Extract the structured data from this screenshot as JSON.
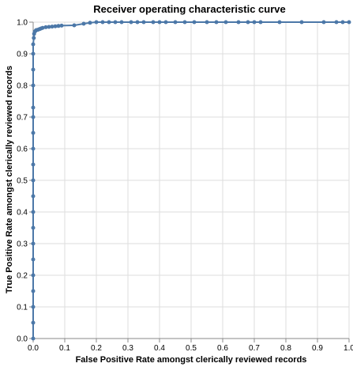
{
  "chart_data": {
    "type": "line",
    "title": "Receiver operating characteristic curve",
    "xlabel": "False Positive Rate amongst clerically reviewed records",
    "ylabel": "True Positive Rate amongst clerically reviewed records",
    "xlim": [
      0,
      1
    ],
    "ylim": [
      0,
      1
    ],
    "x_ticks": [
      0,
      0.1,
      0.2,
      0.3,
      0.4,
      0.5,
      0.6,
      0.7,
      0.8,
      0.9,
      1
    ],
    "x_tick_labels": [
      "0.0",
      "0.1",
      "0.2",
      "0.3",
      "0.4",
      "0.5",
      "0.6",
      "0.7",
      "0.8",
      "0.9",
      "1.0"
    ],
    "y_ticks": [
      0,
      0.1,
      0.2,
      0.3,
      0.4,
      0.5,
      0.6,
      0.7,
      0.8,
      0.9,
      1
    ],
    "y_tick_labels": [
      "0.0",
      "0.1",
      "0.2",
      "0.3",
      "0.4",
      "0.5",
      "0.6",
      "0.7",
      "0.8",
      "0.9",
      "1.0"
    ],
    "grid": true,
    "color": "#4c78a8",
    "series": [
      {
        "points": [
          [
            0,
            0
          ],
          [
            0,
            0.05
          ],
          [
            0,
            0.1
          ],
          [
            0,
            0.15
          ],
          [
            0,
            0.2
          ],
          [
            0,
            0.25
          ],
          [
            0,
            0.3
          ],
          [
            0,
            0.35
          ],
          [
            0,
            0.4
          ],
          [
            0,
            0.45
          ],
          [
            0,
            0.5
          ],
          [
            0,
            0.55
          ],
          [
            0,
            0.6
          ],
          [
            0,
            0.65
          ],
          [
            0,
            0.7
          ],
          [
            0,
            0.73
          ],
          [
            0,
            0.8
          ],
          [
            0,
            0.85
          ],
          [
            0,
            0.9
          ],
          [
            0,
            0.93
          ],
          [
            0.002,
            0.95
          ],
          [
            0.003,
            0.963
          ],
          [
            0.005,
            0.97
          ],
          [
            0.008,
            0.973
          ],
          [
            0.01,
            0.975
          ],
          [
            0.015,
            0.976
          ],
          [
            0.02,
            0.978
          ],
          [
            0.025,
            0.98
          ],
          [
            0.03,
            0.982
          ],
          [
            0.04,
            0.984
          ],
          [
            0.05,
            0.985
          ],
          [
            0.06,
            0.986
          ],
          [
            0.07,
            0.987
          ],
          [
            0.08,
            0.988
          ],
          [
            0.09,
            0.989
          ],
          [
            0.13,
            0.99
          ],
          [
            0.16,
            0.995
          ],
          [
            0.18,
            0.998
          ],
          [
            0.2,
            1.0
          ],
          [
            0.22,
            1.0
          ],
          [
            0.24,
            1.0
          ],
          [
            0.26,
            1.0
          ],
          [
            0.28,
            1.0
          ],
          [
            0.31,
            1.0
          ],
          [
            0.33,
            1.0
          ],
          [
            0.35,
            1.0
          ],
          [
            0.38,
            1.0
          ],
          [
            0.4,
            1.0
          ],
          [
            0.42,
            1.0
          ],
          [
            0.45,
            1.0
          ],
          [
            0.48,
            1.0
          ],
          [
            0.51,
            1.0
          ],
          [
            0.55,
            1.0
          ],
          [
            0.58,
            1.0
          ],
          [
            0.61,
            1.0
          ],
          [
            0.65,
            1.0
          ],
          [
            0.68,
            1.0
          ],
          [
            0.7,
            1.0
          ],
          [
            0.72,
            1.0
          ],
          [
            0.78,
            1.0
          ],
          [
            0.85,
            1.0
          ],
          [
            0.92,
            1.0
          ],
          [
            0.96,
            1.0
          ],
          [
            0.98,
            1.0
          ],
          [
            1.0,
            1.0
          ]
        ]
      }
    ]
  }
}
